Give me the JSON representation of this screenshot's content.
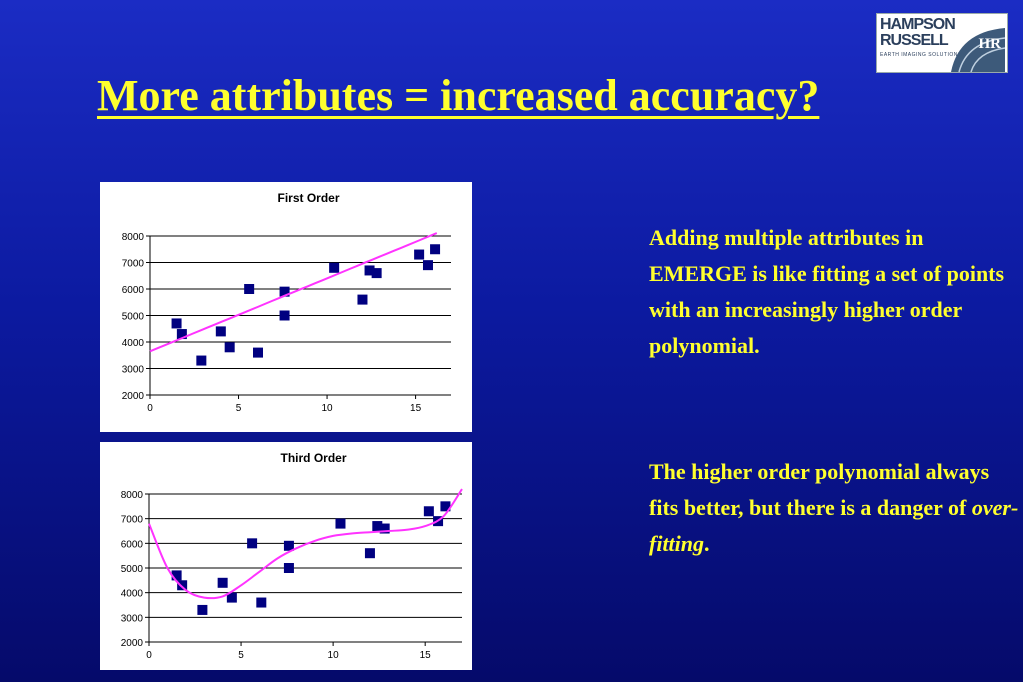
{
  "slide": {
    "title": "More attributes = increased accuracy?",
    "paragraph1": "Adding multiple attributes in EMERGE is like fitting a set of points with an increasingly higher order polynomial.",
    "paragraph2_pre": "The higher order polynomial always fits better, but there is a danger of ",
    "paragraph2_emph": "over-fitting",
    "paragraph2_post": "."
  },
  "logo": {
    "line1": "HAMPSON",
    "line2": "RUSSELL",
    "tagline": "EARTH IMAGING SOLUTIONS",
    "mark_text": "HR"
  },
  "colors": {
    "background": "#0c1aa0",
    "text": "#ffff2e",
    "points": "#000080",
    "fit_line": "#ff33ff"
  },
  "chart_data": [
    {
      "type": "scatter",
      "title": "First Order",
      "xlim": [
        0,
        17
      ],
      "ylim": [
        2000,
        8000
      ],
      "xticks": [
        0,
        5,
        10,
        15
      ],
      "yticks": [
        2000,
        3000,
        4000,
        5000,
        6000,
        7000,
        8000
      ],
      "grid": "horizontal",
      "series": [
        {
          "points": [
            [
              1.5,
              4700
            ],
            [
              1.8,
              4300
            ],
            [
              2.9,
              3300
            ],
            [
              4.0,
              4400
            ],
            [
              4.5,
              3800
            ],
            [
              5.6,
              6000
            ],
            [
              6.1,
              3600
            ],
            [
              7.6,
              5900
            ],
            [
              7.6,
              5000
            ],
            [
              10.4,
              6800
            ],
            [
              12.0,
              5600
            ],
            [
              12.4,
              6700
            ],
            [
              12.8,
              6600
            ],
            [
              15.2,
              7300
            ],
            [
              15.7,
              6900
            ],
            [
              16.1,
              7500
            ]
          ]
        }
      ],
      "fit": {
        "order": 1,
        "x_range": [
          0,
          16.2
        ],
        "coefficients": [
          3650,
          275.3
        ]
      }
    },
    {
      "type": "scatter",
      "title": "Third Order",
      "xlim": [
        0,
        17
      ],
      "ylim": [
        2000,
        8000
      ],
      "xticks": [
        0,
        5,
        10,
        15
      ],
      "yticks": [
        2000,
        3000,
        4000,
        5000,
        6000,
        7000,
        8000
      ],
      "grid": "horizontal",
      "series": [
        {
          "points": [
            [
              1.5,
              4700
            ],
            [
              1.8,
              4300
            ],
            [
              2.9,
              3300
            ],
            [
              4.0,
              4400
            ],
            [
              4.5,
              3800
            ],
            [
              5.6,
              6000
            ],
            [
              6.1,
              3600
            ],
            [
              7.6,
              5900
            ],
            [
              7.6,
              5000
            ],
            [
              10.4,
              6800
            ],
            [
              12.0,
              5600
            ],
            [
              12.4,
              6700
            ],
            [
              12.8,
              6600
            ],
            [
              15.2,
              7300
            ],
            [
              15.7,
              6900
            ],
            [
              16.1,
              7500
            ]
          ]
        }
      ],
      "fit": {
        "order": 3,
        "x_range": [
          0,
          17
        ],
        "points": [
          [
            0,
            6800
          ],
          [
            1,
            5000
          ],
          [
            2,
            4100
          ],
          [
            3,
            3800
          ],
          [
            4,
            3850
          ],
          [
            5,
            4300
          ],
          [
            6,
            4850
          ],
          [
            7,
            5400
          ],
          [
            8,
            5800
          ],
          [
            9,
            6100
          ],
          [
            10,
            6300
          ],
          [
            11,
            6400
          ],
          [
            12,
            6450
          ],
          [
            13,
            6500
          ],
          [
            14,
            6550
          ],
          [
            15,
            6700
          ],
          [
            16,
            7100
          ],
          [
            17,
            8200
          ]
        ]
      }
    }
  ]
}
